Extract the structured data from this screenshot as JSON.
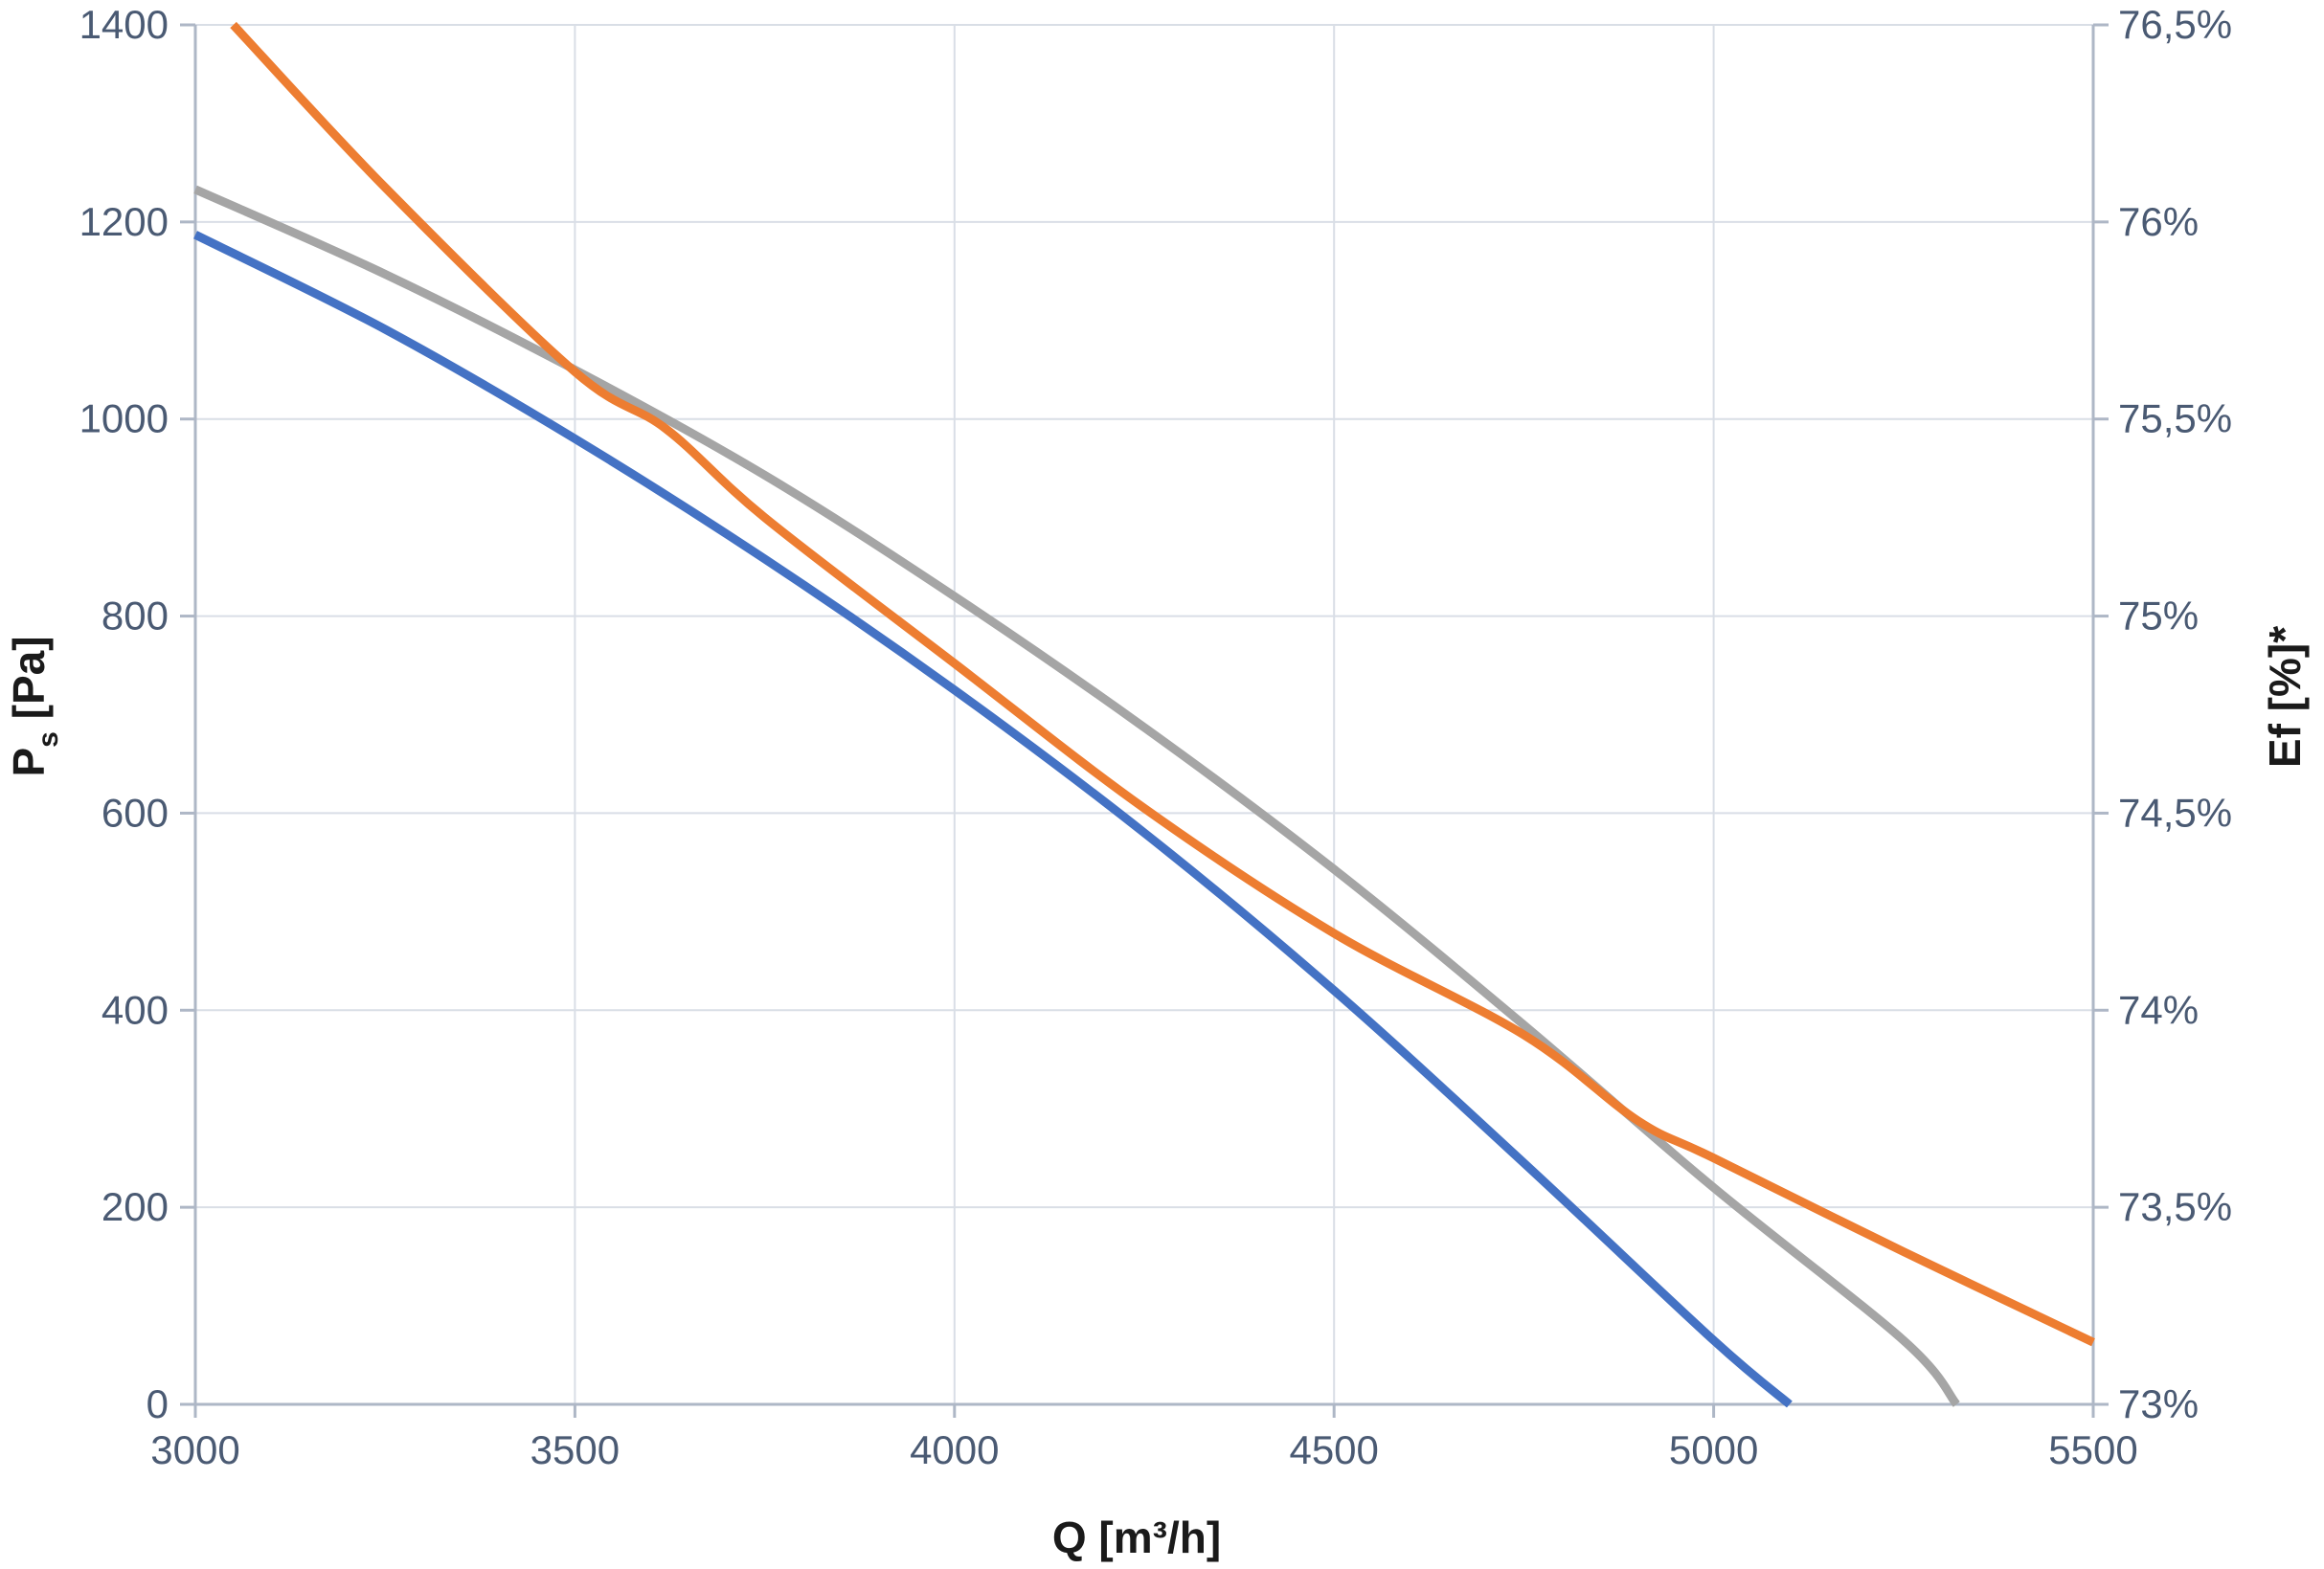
{
  "chart_data": {
    "type": "line",
    "xlabel": "Q [m³/h]",
    "ylabel_main": "P",
    "ylabel_sub": "s",
    "ylabel_rest": " [Pa]",
    "y2label": "Ef [%]*",
    "xlim": [
      3000,
      5500
    ],
    "ylim": [
      0,
      1400
    ],
    "y2lim": [
      73,
      76.5
    ],
    "x_ticks": [
      3000,
      3500,
      4000,
      4500,
      5000,
      5500
    ],
    "y_ticks": [
      0,
      200,
      400,
      600,
      800,
      1000,
      1200,
      1400
    ],
    "y2_ticks": [
      73,
      73.5,
      74,
      74.5,
      75,
      75.5,
      76,
      76.5
    ],
    "x_tick_labels": [
      "3000",
      "3500",
      "4000",
      "4500",
      "5000",
      "5500"
    ],
    "y_tick_labels": [
      "0",
      "200",
      "400",
      "600",
      "800",
      "1000",
      "1200",
      "1400"
    ],
    "y2_tick_labels": [
      "73%",
      "73,5%",
      "74%",
      "74,5%",
      "75%",
      "75,5%",
      "76%",
      "76,5%"
    ],
    "grid": true,
    "series": [
      {
        "color": "#4472c4",
        "axis": "left",
        "x": [
          3000,
          3250,
          3500,
          3750,
          4000,
          4250,
          4500,
          4750,
          5000,
          5100
        ],
        "y": [
          1187,
          1091,
          980,
          858,
          725,
          580,
          420,
          245,
          65,
          0
        ]
      },
      {
        "color": "#a5a5a5",
        "axis": "left",
        "x": [
          3000,
          3250,
          3500,
          3750,
          4000,
          4250,
          4500,
          4750,
          5000,
          5250,
          5320
        ],
        "y": [
          1233,
          1147,
          1050,
          943,
          820,
          687,
          543,
          385,
          220,
          65,
          0
        ]
      },
      {
        "color": "#ed7d31",
        "axis": "left",
        "x": [
          3050,
          3250,
          3500,
          3620,
          3750,
          4000,
          4250,
          4500,
          4750,
          4900,
          5000,
          5250,
          5500
        ],
        "y": [
          1400,
          1235,
          1048,
          990,
          900,
          752,
          605,
          478,
          375,
          288,
          250,
          155,
          63
        ]
      }
    ]
  }
}
